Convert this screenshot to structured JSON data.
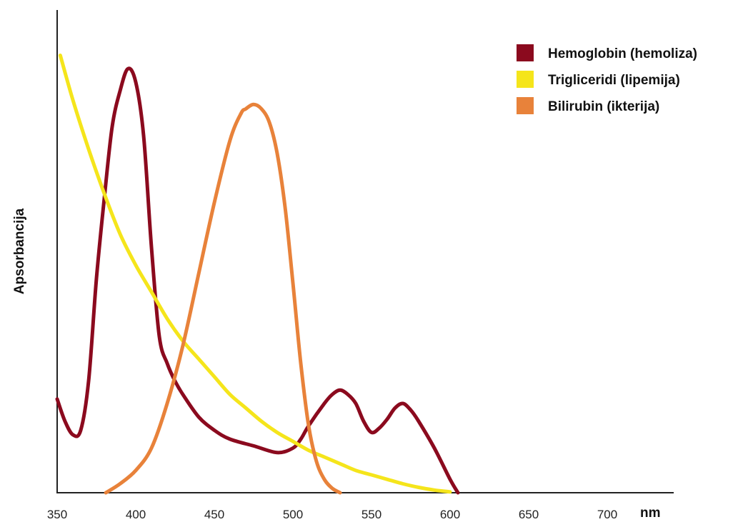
{
  "chart_data": {
    "type": "line",
    "ylabel": "Apsorbancija",
    "xunit": "nm",
    "xlim": [
      350,
      740
    ],
    "ylim": [
      0,
      1.0
    ],
    "x_ticks": [
      350,
      400,
      450,
      500,
      550,
      600,
      650,
      700
    ],
    "legend_position": "top-right",
    "series": [
      {
        "name": "Hemoglobin (hemoliza)",
        "color": "#8b0a1e",
        "points": [
          [
            350,
            0.21
          ],
          [
            355,
            0.16
          ],
          [
            360,
            0.13
          ],
          [
            365,
            0.14
          ],
          [
            370,
            0.25
          ],
          [
            375,
            0.48
          ],
          [
            380,
            0.66
          ],
          [
            385,
            0.82
          ],
          [
            390,
            0.9
          ],
          [
            395,
            0.95
          ],
          [
            400,
            0.92
          ],
          [
            405,
            0.8
          ],
          [
            410,
            0.55
          ],
          [
            415,
            0.35
          ],
          [
            420,
            0.29
          ],
          [
            425,
            0.25
          ],
          [
            430,
            0.22
          ],
          [
            440,
            0.17
          ],
          [
            450,
            0.14
          ],
          [
            460,
            0.12
          ],
          [
            475,
            0.105
          ],
          [
            490,
            0.09
          ],
          [
            500,
            0.1
          ],
          [
            505,
            0.12
          ],
          [
            510,
            0.15
          ],
          [
            520,
            0.2
          ],
          [
            525,
            0.22
          ],
          [
            530,
            0.23
          ],
          [
            535,
            0.22
          ],
          [
            540,
            0.2
          ],
          [
            545,
            0.16
          ],
          [
            550,
            0.135
          ],
          [
            555,
            0.145
          ],
          [
            560,
            0.165
          ],
          [
            565,
            0.19
          ],
          [
            570,
            0.2
          ],
          [
            575,
            0.185
          ],
          [
            580,
            0.16
          ],
          [
            590,
            0.1
          ],
          [
            600,
            0.03
          ],
          [
            605,
            0.0
          ]
        ]
      },
      {
        "name": "Trigliceridi (lipemija)",
        "color": "#f5e51b",
        "points": [
          [
            352,
            0.98
          ],
          [
            360,
            0.88
          ],
          [
            370,
            0.77
          ],
          [
            380,
            0.67
          ],
          [
            390,
            0.58
          ],
          [
            400,
            0.51
          ],
          [
            410,
            0.45
          ],
          [
            420,
            0.39
          ],
          [
            430,
            0.34
          ],
          [
            440,
            0.3
          ],
          [
            450,
            0.26
          ],
          [
            460,
            0.22
          ],
          [
            470,
            0.19
          ],
          [
            480,
            0.16
          ],
          [
            490,
            0.135
          ],
          [
            500,
            0.115
          ],
          [
            510,
            0.095
          ],
          [
            520,
            0.08
          ],
          [
            530,
            0.065
          ],
          [
            540,
            0.05
          ],
          [
            550,
            0.04
          ],
          [
            560,
            0.03
          ],
          [
            570,
            0.02
          ],
          [
            580,
            0.012
          ],
          [
            590,
            0.006
          ],
          [
            600,
            0.002
          ]
        ]
      },
      {
        "name": "Bilirubin (ikterija)",
        "color": "#e8823a",
        "points": [
          [
            381,
            0.0
          ],
          [
            390,
            0.02
          ],
          [
            400,
            0.05
          ],
          [
            410,
            0.1
          ],
          [
            420,
            0.2
          ],
          [
            430,
            0.33
          ],
          [
            440,
            0.49
          ],
          [
            450,
            0.65
          ],
          [
            460,
            0.79
          ],
          [
            467,
            0.85
          ],
          [
            470,
            0.86
          ],
          [
            475,
            0.87
          ],
          [
            480,
            0.86
          ],
          [
            485,
            0.83
          ],
          [
            490,
            0.76
          ],
          [
            495,
            0.64
          ],
          [
            500,
            0.47
          ],
          [
            505,
            0.29
          ],
          [
            510,
            0.15
          ],
          [
            515,
            0.07
          ],
          [
            520,
            0.03
          ],
          [
            525,
            0.01
          ],
          [
            530,
            0.0
          ]
        ]
      }
    ]
  }
}
